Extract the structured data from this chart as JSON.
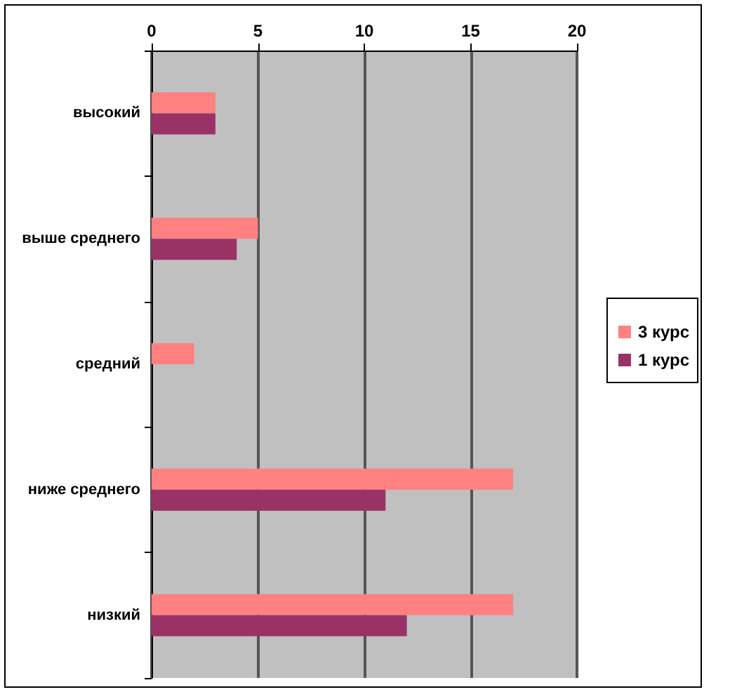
{
  "chart_data": {
    "type": "bar",
    "orientation": "horizontal",
    "categories": [
      "высокий",
      "выше среднего",
      "средний",
      "ниже среднего",
      "низкий"
    ],
    "series": [
      {
        "name": "3 курс",
        "color": "#ff8080",
        "values": [
          3,
          5,
          2,
          17,
          17
        ]
      },
      {
        "name": "1 курс",
        "color": "#993366",
        "values": [
          3,
          4,
          0,
          11,
          12
        ]
      }
    ],
    "xlim": [
      0,
      20
    ],
    "xticks": [
      0,
      5,
      10,
      15,
      20
    ],
    "grid": "x",
    "legend": "right"
  }
}
